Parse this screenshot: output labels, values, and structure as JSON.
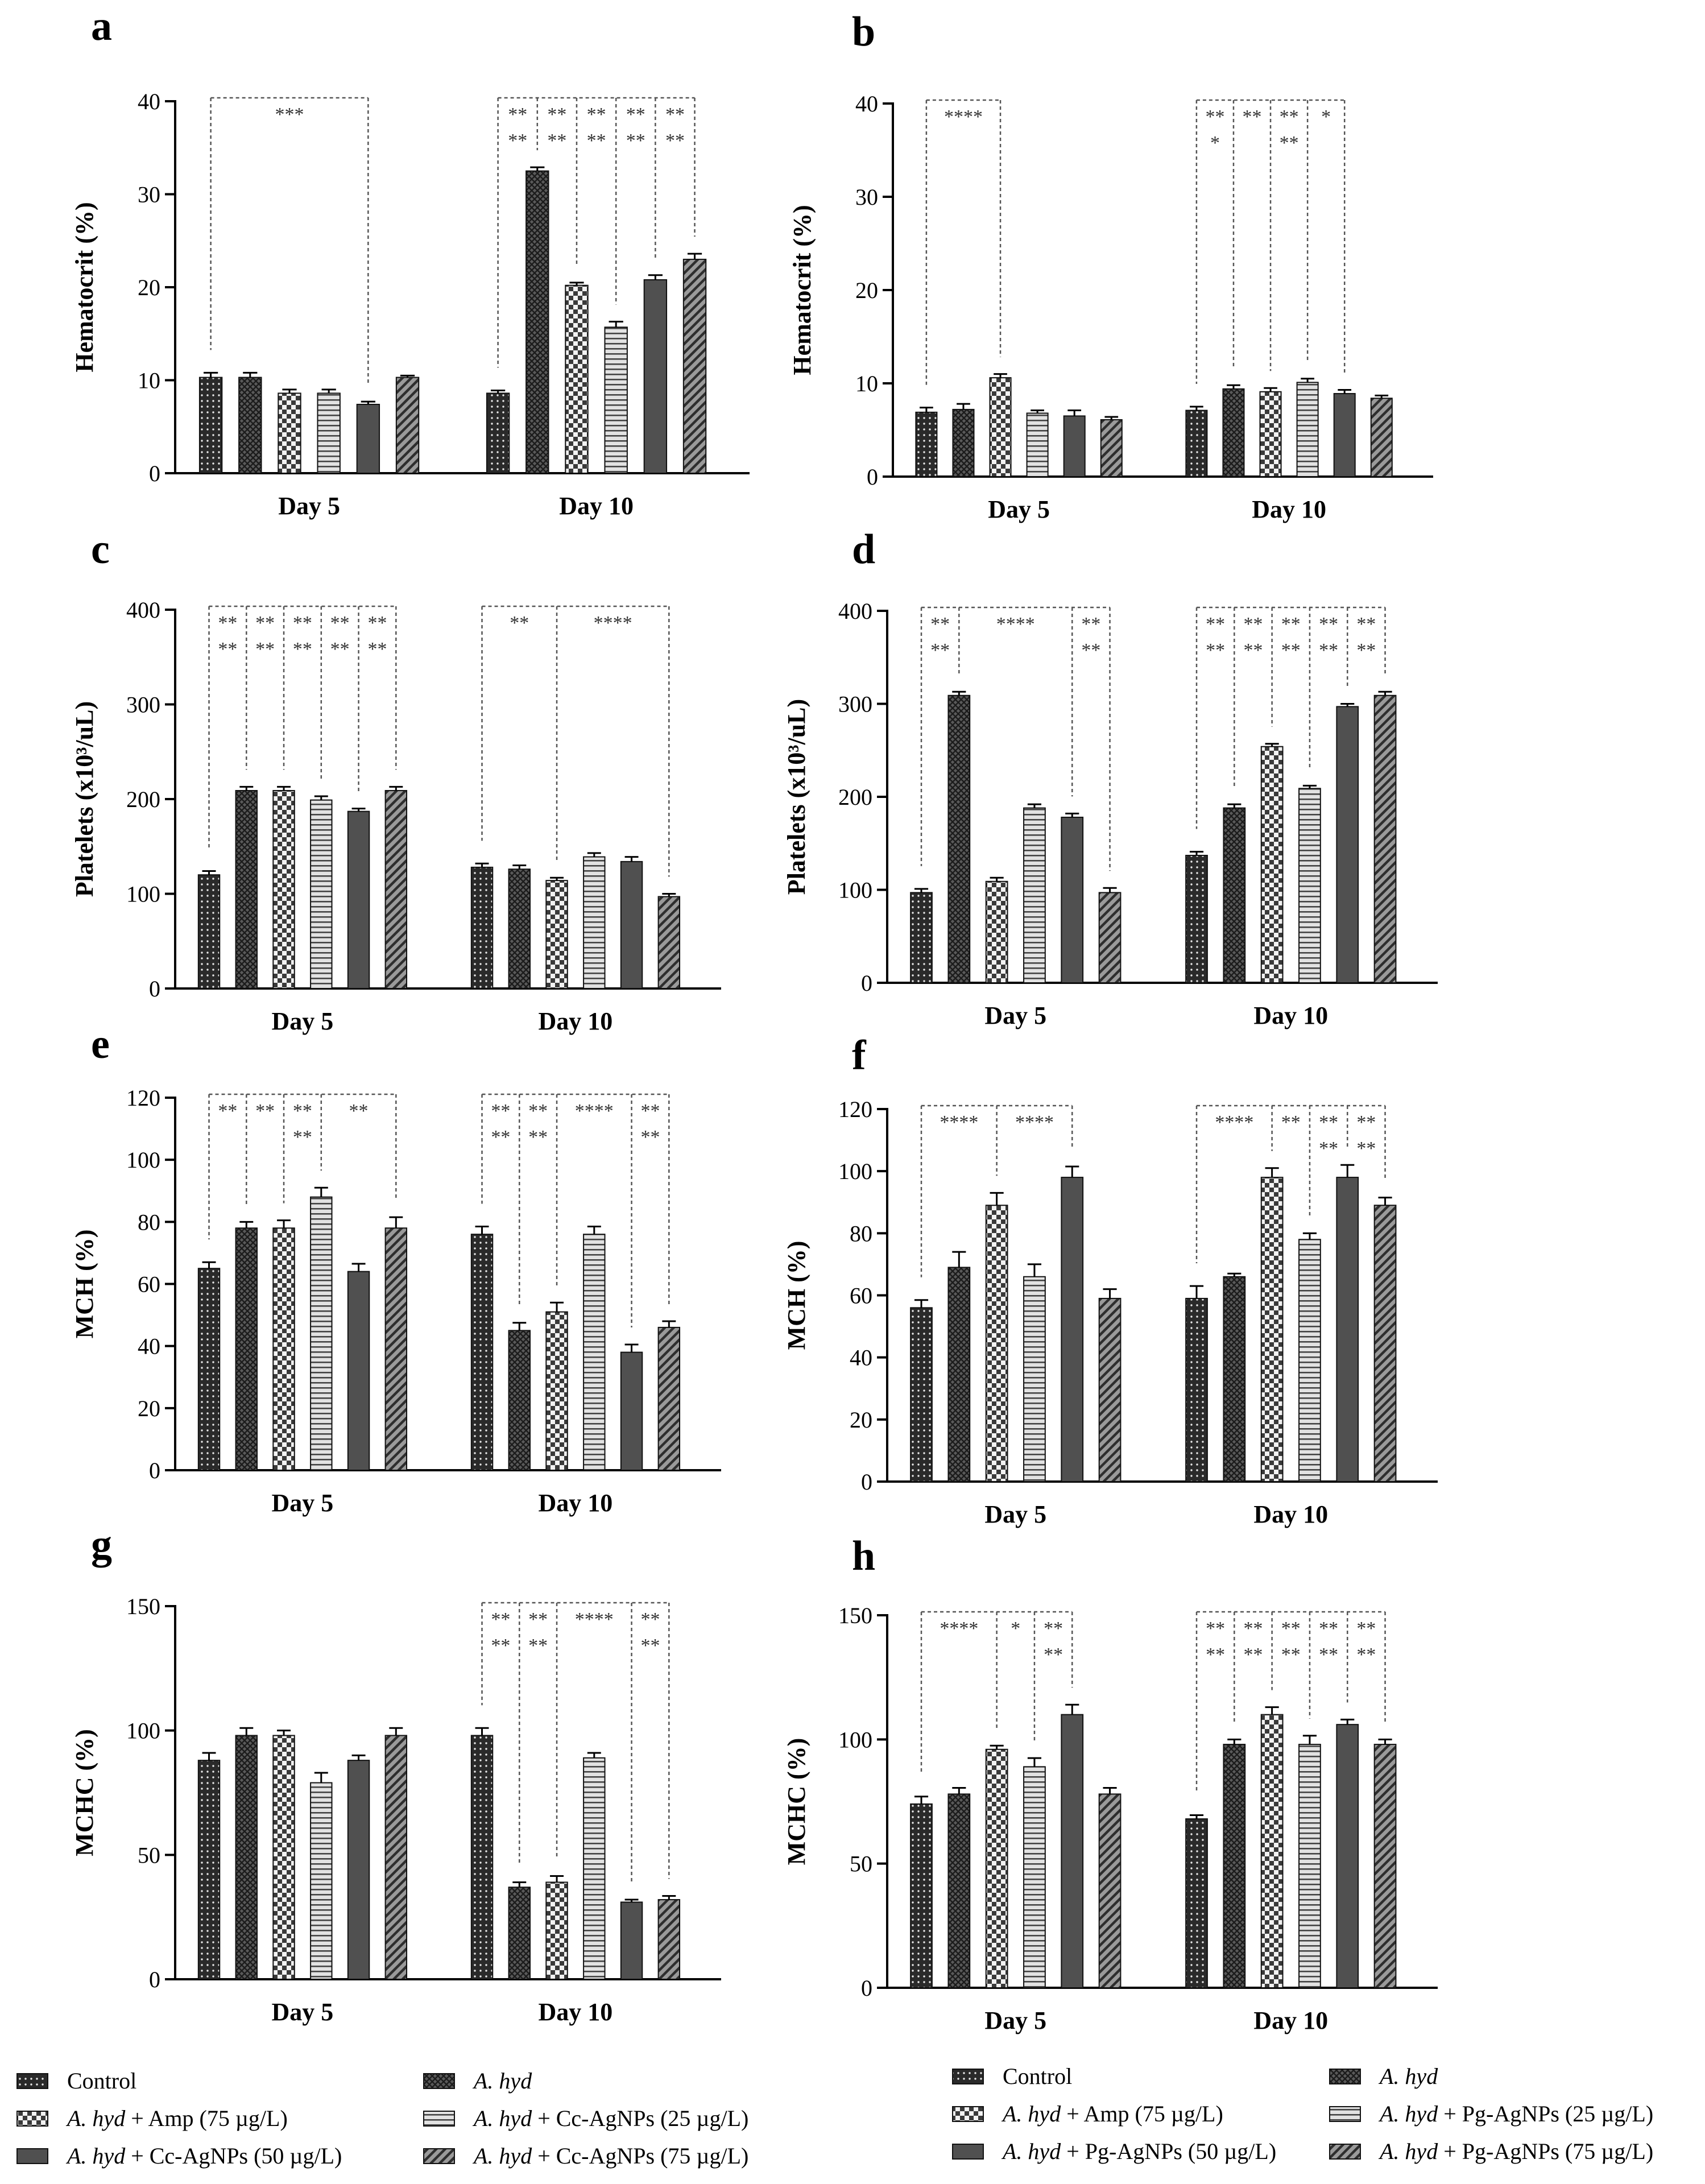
{
  "patterns": {
    "dots": "Control",
    "cross": "A. hyd",
    "checker": "Amp",
    "hlines": "AgNPs 25",
    "solid": "AgNPs 50",
    "diag": "AgNPs 75"
  },
  "colors": {
    "bar": "#333333",
    "bar_light": "#d8d8d8",
    "bracket": "#555555",
    "axis": "#000000"
  },
  "chart_data": [
    {
      "panel": "a",
      "type": "bar",
      "ylabel": "Hematocrit (%)",
      "ylim": [
        0,
        40
      ],
      "yticks": [
        0,
        10,
        20,
        30,
        40
      ],
      "categories": [
        "Day 5",
        "Day 10"
      ],
      "series": [
        {
          "name": "Control",
          "pattern": "dots",
          "values": [
            10.3,
            8.6
          ],
          "errors": [
            0.5,
            0.3
          ]
        },
        {
          "name": "A. hyd",
          "pattern": "cross",
          "values": [
            10.3,
            32.5
          ],
          "errors": [
            0.5,
            0.4
          ]
        },
        {
          "name": "A. hyd + Amp (75 µg/L)",
          "pattern": "checker",
          "values": [
            8.6,
            20.2
          ],
          "errors": [
            0.4,
            0.3
          ]
        },
        {
          "name": "A. hyd + Cc-AgNPs (25 µg/L)",
          "pattern": "hlines",
          "values": [
            8.6,
            15.7
          ],
          "errors": [
            0.4,
            0.6
          ]
        },
        {
          "name": "A. hyd + Cc-AgNPs (50 µg/L)",
          "pattern": "solid",
          "values": [
            7.4,
            20.8
          ],
          "errors": [
            0.3,
            0.5
          ]
        },
        {
          "name": "A. hyd + Cc-AgNPs (75 µg/L)",
          "pattern": "diag",
          "values": [
            10.3,
            23.0
          ],
          "errors": [
            0.2,
            0.6
          ]
        }
      ],
      "annotations": [
        {
          "day": 0,
          "to": [
            4
          ],
          "labels": [
            "***"
          ]
        },
        {
          "day": 1,
          "to": [
            1,
            2,
            3,
            4,
            5
          ],
          "labels": [
            "**\n**",
            "**\n**",
            "**\n**",
            "**\n**",
            "**\n**"
          ]
        }
      ]
    },
    {
      "panel": "b",
      "type": "bar",
      "ylabel": "Hematocrit (%)",
      "ylim": [
        0,
        40
      ],
      "yticks": [
        0,
        10,
        20,
        30,
        40
      ],
      "categories": [
        "Day 5",
        "Day 10"
      ],
      "series": [
        {
          "name": "Control",
          "pattern": "dots",
          "values": [
            6.9,
            7.1
          ],
          "errors": [
            0.5,
            0.4
          ]
        },
        {
          "name": "A. hyd",
          "pattern": "cross",
          "values": [
            7.2,
            9.4
          ],
          "errors": [
            0.6,
            0.4
          ]
        },
        {
          "name": "A. hyd + Amp (75 µg/L)",
          "pattern": "checker",
          "values": [
            10.6,
            9.1
          ],
          "errors": [
            0.4,
            0.4
          ]
        },
        {
          "name": "A. hyd + Pg-AgNPs (25 µg/L)",
          "pattern": "hlines",
          "values": [
            6.8,
            10.1
          ],
          "errors": [
            0.3,
            0.4
          ]
        },
        {
          "name": "A. hyd + Pg-AgNPs (50 µg/L)",
          "pattern": "solid",
          "values": [
            6.5,
            8.9
          ],
          "errors": [
            0.6,
            0.4
          ]
        },
        {
          "name": "A. hyd + Pg-AgNPs (75 µg/L)",
          "pattern": "diag",
          "values": [
            6.1,
            8.4
          ],
          "errors": [
            0.3,
            0.3
          ]
        }
      ],
      "annotations": [
        {
          "day": 0,
          "to": [
            2
          ],
          "labels": [
            "****"
          ]
        },
        {
          "day": 1,
          "to": [
            1,
            2,
            3,
            4
          ],
          "labels": [
            "**\n*",
            "**",
            "**\n**",
            "*"
          ]
        }
      ]
    },
    {
      "panel": "c",
      "type": "bar",
      "ylabel": "Platelets (x10³/uL)",
      "ylim": [
        0,
        400
      ],
      "yticks": [
        0,
        100,
        200,
        300,
        400
      ],
      "categories": [
        "Day 5",
        "Day 10"
      ],
      "series": [
        {
          "name": "Control",
          "pattern": "dots",
          "values": [
            120,
            128
          ],
          "errors": [
            4,
            4
          ]
        },
        {
          "name": "A. hyd",
          "pattern": "cross",
          "values": [
            209,
            126
          ],
          "errors": [
            4,
            4
          ]
        },
        {
          "name": "A. hyd + Amp (75 µg/L)",
          "pattern": "checker",
          "values": [
            209,
            114
          ],
          "errors": [
            4,
            3
          ]
        },
        {
          "name": "A. hyd + Cc-AgNPs (25 µg/L)",
          "pattern": "hlines",
          "values": [
            199,
            139
          ],
          "errors": [
            4,
            4
          ]
        },
        {
          "name": "A. hyd + Cc-AgNPs (50 µg/L)",
          "pattern": "solid",
          "values": [
            187,
            134
          ],
          "errors": [
            3,
            5
          ]
        },
        {
          "name": "A. hyd + Cc-AgNPs (75 µg/L)",
          "pattern": "diag",
          "values": [
            209,
            97
          ],
          "errors": [
            4,
            3
          ]
        }
      ],
      "annotations": [
        {
          "day": 0,
          "to": [
            1,
            2,
            3,
            4,
            5
          ],
          "labels": [
            "**\n**",
            "**\n**",
            "**\n**",
            "**\n**",
            "**\n**"
          ]
        },
        {
          "day": 1,
          "to": [
            2,
            5
          ],
          "labels": [
            "**",
            "****"
          ]
        }
      ]
    },
    {
      "panel": "d",
      "type": "bar",
      "ylabel": "Platelets (x10³/uL)",
      "ylim": [
        0,
        400
      ],
      "yticks": [
        0,
        100,
        200,
        300,
        400
      ],
      "categories": [
        "Day 5",
        "Day 10"
      ],
      "series": [
        {
          "name": "Control",
          "pattern": "dots",
          "values": [
            97,
            137
          ],
          "errors": [
            4,
            4
          ]
        },
        {
          "name": "A. hyd",
          "pattern": "cross",
          "values": [
            309,
            188
          ],
          "errors": [
            4,
            4
          ]
        },
        {
          "name": "A. hyd + Amp (75 µg/L)",
          "pattern": "checker",
          "values": [
            109,
            254
          ],
          "errors": [
            4,
            3
          ]
        },
        {
          "name": "A. hyd + Pg-AgNPs (25 µg/L)",
          "pattern": "hlines",
          "values": [
            188,
            209
          ],
          "errors": [
            4,
            3
          ]
        },
        {
          "name": "A. hyd + Pg-AgNPs (50 µg/L)",
          "pattern": "solid",
          "values": [
            178,
            297
          ],
          "errors": [
            4,
            3
          ]
        },
        {
          "name": "A. hyd + Pg-AgNPs (75 µg/L)",
          "pattern": "diag",
          "values": [
            97,
            309
          ],
          "errors": [
            5,
            4
          ]
        }
      ],
      "annotations": [
        {
          "day": 0,
          "to": [
            1,
            4,
            5
          ],
          "labels": [
            "**\n**",
            "****",
            "**\n**"
          ]
        },
        {
          "day": 1,
          "to": [
            1,
            2,
            3,
            4,
            5
          ],
          "labels": [
            "**\n**",
            "**\n**",
            "**\n**",
            "**\n**",
            "**\n**"
          ]
        }
      ]
    },
    {
      "panel": "e",
      "type": "bar",
      "ylabel": "MCH (%)",
      "ylim": [
        0,
        120
      ],
      "yticks": [
        0,
        20,
        40,
        60,
        80,
        100,
        120
      ],
      "categories": [
        "Day 5",
        "Day 10"
      ],
      "series": [
        {
          "name": "Control",
          "pattern": "dots",
          "values": [
            65,
            76
          ],
          "errors": [
            2,
            2.5
          ]
        },
        {
          "name": "A. hyd",
          "pattern": "cross",
          "values": [
            78,
            45
          ],
          "errors": [
            2,
            2.5
          ]
        },
        {
          "name": "A. hyd + Amp (75 µg/L)",
          "pattern": "checker",
          "values": [
            78,
            51
          ],
          "errors": [
            2.5,
            3
          ]
        },
        {
          "name": "A. hyd + Cc-AgNPs (25 µg/L)",
          "pattern": "hlines",
          "values": [
            88,
            76
          ],
          "errors": [
            3,
            2.5
          ]
        },
        {
          "name": "A. hyd + Cc-AgNPs (50 µg/L)",
          "pattern": "solid",
          "values": [
            64,
            38
          ],
          "errors": [
            2.5,
            2.5
          ]
        },
        {
          "name": "A. hyd + Cc-AgNPs (75 µg/L)",
          "pattern": "diag",
          "values": [
            78,
            46
          ],
          "errors": [
            3.5,
            2
          ]
        }
      ],
      "annotations": [
        {
          "day": 0,
          "to": [
            1,
            2,
            3,
            5
          ],
          "labels": [
            "**",
            "**",
            "**\n**",
            "**"
          ]
        },
        {
          "day": 1,
          "to": [
            1,
            2,
            4,
            5
          ],
          "labels": [
            "**\n**",
            "**\n**",
            "****",
            "**\n**"
          ]
        }
      ]
    },
    {
      "panel": "f",
      "type": "bar",
      "ylabel": "MCH (%)",
      "ylim": [
        0,
        120
      ],
      "yticks": [
        0,
        20,
        40,
        60,
        80,
        100,
        120
      ],
      "categories": [
        "Day 5",
        "Day 10"
      ],
      "series": [
        {
          "name": "Control",
          "pattern": "dots",
          "values": [
            56,
            59
          ],
          "errors": [
            2.5,
            4
          ]
        },
        {
          "name": "A. hyd",
          "pattern": "cross",
          "values": [
            69,
            66
          ],
          "errors": [
            5,
            1
          ]
        },
        {
          "name": "A. hyd + Amp (75 µg/L)",
          "pattern": "checker",
          "values": [
            89,
            98
          ],
          "errors": [
            4,
            3
          ]
        },
        {
          "name": "A. hyd + Pg-AgNPs (25 µg/L)",
          "pattern": "hlines",
          "values": [
            66,
            78
          ],
          "errors": [
            4,
            2
          ]
        },
        {
          "name": "A. hyd + Pg-AgNPs (50 µg/L)",
          "pattern": "solid",
          "values": [
            98,
            98
          ],
          "errors": [
            3.5,
            4
          ]
        },
        {
          "name": "A. hyd + Pg-AgNPs (75 µg/L)",
          "pattern": "diag",
          "values": [
            59,
            89
          ],
          "errors": [
            3,
            2.5
          ]
        }
      ],
      "annotations": [
        {
          "day": 0,
          "to": [
            2,
            4
          ],
          "labels": [
            "****",
            "****"
          ]
        },
        {
          "day": 1,
          "to": [
            2,
            3,
            4,
            5
          ],
          "labels": [
            "****",
            "**",
            "**\n**",
            "**\n**"
          ]
        }
      ]
    },
    {
      "panel": "g",
      "type": "bar",
      "ylabel": "MCHC (%)",
      "ylim": [
        0,
        150
      ],
      "yticks": [
        0,
        50,
        100,
        150
      ],
      "categories": [
        "Day 5",
        "Day 10"
      ],
      "series": [
        {
          "name": "Control",
          "pattern": "dots",
          "values": [
            88,
            98
          ],
          "errors": [
            3,
            3
          ]
        },
        {
          "name": "A. hyd",
          "pattern": "cross",
          "values": [
            98,
            37
          ],
          "errors": [
            3,
            2
          ]
        },
        {
          "name": "A. hyd + Amp (75 µg/L)",
          "pattern": "checker",
          "values": [
            98,
            39
          ],
          "errors": [
            2,
            2.5
          ]
        },
        {
          "name": "A. hyd + Cc-AgNPs (25 µg/L)",
          "pattern": "hlines",
          "values": [
            79,
            89
          ],
          "errors": [
            4,
            2
          ]
        },
        {
          "name": "A. hyd + Cc-AgNPs (50 µg/L)",
          "pattern": "solid",
          "values": [
            88,
            31
          ],
          "errors": [
            2,
            1
          ]
        },
        {
          "name": "A. hyd + Cc-AgNPs (75 µg/L)",
          "pattern": "diag",
          "values": [
            98,
            32
          ],
          "errors": [
            3,
            1.5
          ]
        }
      ],
      "annotations": [
        {
          "day": 1,
          "to": [
            1,
            2,
            4,
            5
          ],
          "labels": [
            "**\n**",
            "**\n**",
            "****",
            "**\n**"
          ]
        }
      ]
    },
    {
      "panel": "h",
      "type": "bar",
      "ylabel": "MCHC (%)",
      "ylim": [
        0,
        150
      ],
      "yticks": [
        0,
        50,
        100,
        150
      ],
      "categories": [
        "Day 5",
        "Day 10"
      ],
      "series": [
        {
          "name": "Control",
          "pattern": "dots",
          "values": [
            74,
            68
          ],
          "errors": [
            3,
            1.5
          ]
        },
        {
          "name": "A. hyd",
          "pattern": "cross",
          "values": [
            78,
            98
          ],
          "errors": [
            2.5,
            2
          ]
        },
        {
          "name": "A. hyd + Amp (75 µg/L)",
          "pattern": "checker",
          "values": [
            96,
            110
          ],
          "errors": [
            1.5,
            3
          ]
        },
        {
          "name": "A. hyd + Pg-AgNPs (25 µg/L)",
          "pattern": "hlines",
          "values": [
            89,
            98
          ],
          "errors": [
            3.5,
            3.5
          ]
        },
        {
          "name": "A. hyd + Pg-AgNPs (50 µg/L)",
          "pattern": "solid",
          "values": [
            110,
            106
          ],
          "errors": [
            4,
            2
          ]
        },
        {
          "name": "A. hyd + Pg-AgNPs (75 µg/L)",
          "pattern": "diag",
          "values": [
            78,
            98
          ],
          "errors": [
            2.5,
            2
          ]
        }
      ],
      "annotations": [
        {
          "day": 0,
          "to": [
            2,
            3,
            4
          ],
          "labels": [
            "****",
            "*",
            "**\n**"
          ]
        },
        {
          "day": 1,
          "to": [
            1,
            2,
            3,
            4,
            5
          ],
          "labels": [
            "**\n**",
            "**\n**",
            "**\n**",
            "**\n**",
            "**\n**"
          ]
        }
      ]
    }
  ],
  "legends": {
    "left": [
      {
        "pattern": "dots",
        "italic": "",
        "text": "Control"
      },
      {
        "pattern": "cross",
        "italic": "A. hyd",
        "text": ""
      },
      {
        "pattern": "checker",
        "italic": "A. hyd",
        "text": " + Amp (75 µg/L)"
      },
      {
        "pattern": "hlines",
        "italic": "A. hyd",
        "text": " + Cc-AgNPs (25 µg/L)"
      },
      {
        "pattern": "solid",
        "italic": "A. hyd",
        "text": " + Cc-AgNPs (50 µg/L)"
      },
      {
        "pattern": "diag",
        "italic": "A. hyd",
        "text": " + Cc-AgNPs (75 µg/L)"
      }
    ],
    "right": [
      {
        "pattern": "dots",
        "italic": "",
        "text": "Control"
      },
      {
        "pattern": "cross",
        "italic": "A. hyd",
        "text": ""
      },
      {
        "pattern": "checker",
        "italic": "A. hyd",
        "text": " + Amp (75 µg/L)"
      },
      {
        "pattern": "hlines",
        "italic": "A. hyd",
        "text": " + Pg-AgNPs (25 µg/L)"
      },
      {
        "pattern": "solid",
        "italic": "A. hyd",
        "text": " + Pg-AgNPs (50 µg/L)"
      },
      {
        "pattern": "diag",
        "italic": "A. hyd",
        "text": " + Pg-AgNPs (75 µg/L)"
      }
    ]
  }
}
